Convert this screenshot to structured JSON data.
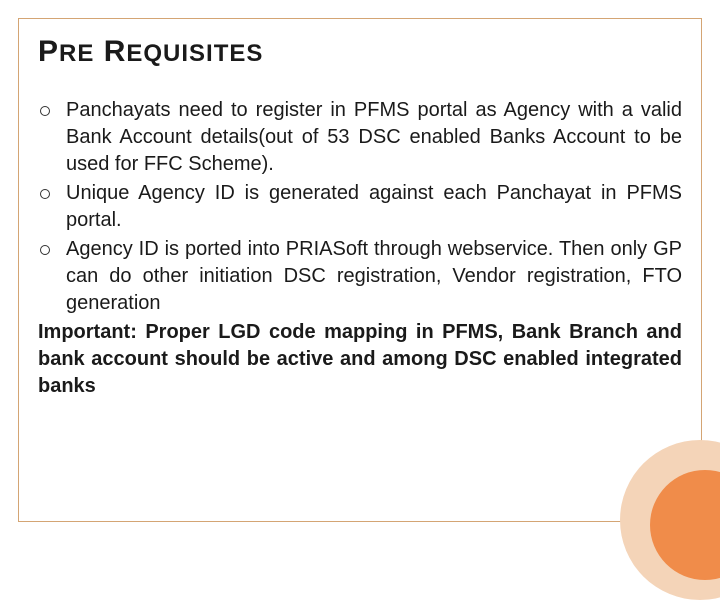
{
  "slide": {
    "title_pre": "P",
    "title_re": "RE",
    "title_space": " ",
    "title_r": "R",
    "title_equisites": "EQUISITES",
    "bullets": [
      "Panchayats need to register in PFMS portal as Agency with a valid Bank Account details(out of 53 DSC enabled Banks Account to be used for FFC Scheme).",
      "Unique Agency ID is generated against each Panchayat in PFMS portal.",
      "Agency ID is ported into PRIASoft through webservice. Then only GP can do other initiation DSC registration, Vendor registration, FTO generation"
    ],
    "important": "Important: Proper LGD code mapping in PFMS, Bank Branch and bank account should be active and among DSC enabled integrated banks"
  },
  "styling": {
    "background_color": "#ffffff",
    "frame_border_color": "#d4a574",
    "title_color": "#1a1a1a",
    "title_fontsize": 30,
    "body_fontsize": 20,
    "body_color": "#1a1a1a",
    "bullet_marker": "hollow-circle",
    "corner_outer_color": "#f4d4b8",
    "corner_inner_color": "#f08c4a",
    "font_family": "Arial"
  }
}
